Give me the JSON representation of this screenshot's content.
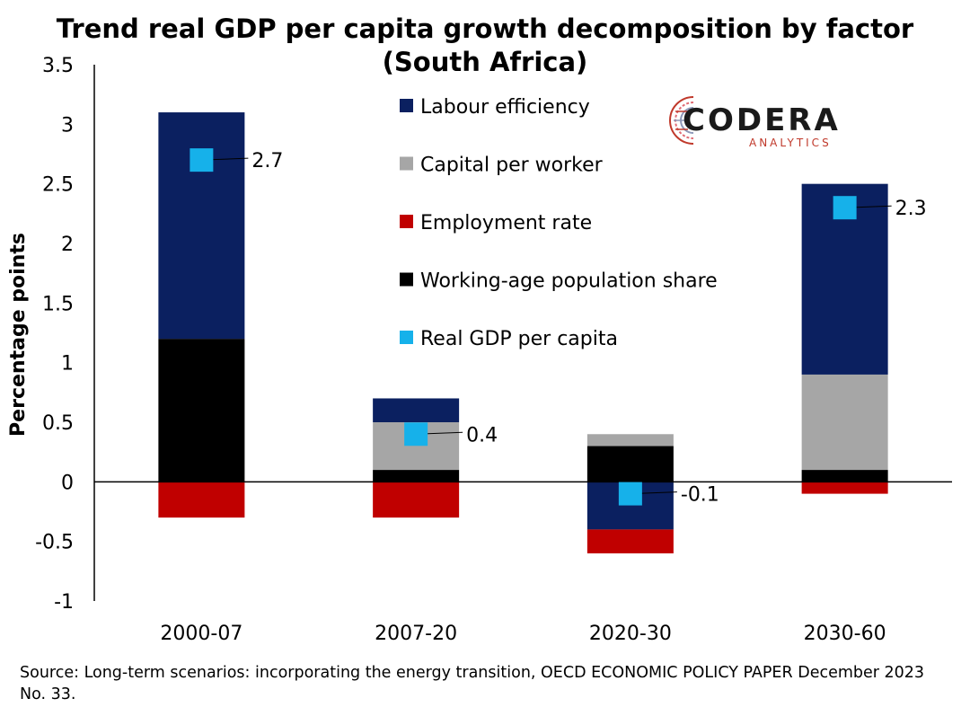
{
  "title_line1": "Trend real GDP per capita growth decomposition by factor",
  "title_line2": "(South Africa)",
  "source_text": "Source: Long-term scenarios: incorporating the energy transition, OECD ECONOMIC POLICY PAPER December 2023 No. 33.",
  "logo": {
    "name": "CODERA",
    "tagline": "ANALYTICS",
    "icon": "codera-circuit-logo"
  },
  "colors": {
    "labour": "#0b2060",
    "capital": "#a6a6a6",
    "employment": "#c00000",
    "working_age": "#000000",
    "gdp": "#16b1ea"
  },
  "chart_data": {
    "type": "bar",
    "stacked": true,
    "title": "Trend real GDP per capita growth decomposition by factor (South Africa)",
    "xlabel": "",
    "ylabel": "Percentage points",
    "ylim": [
      -1,
      3.5
    ],
    "yticks": [
      "3.5",
      "3",
      "2.5",
      "2",
      "1.5",
      "1",
      "0.5",
      "0",
      "-0.5",
      "-1"
    ],
    "grid": false,
    "legend_position": "top-center",
    "categories": [
      "2000-07",
      "2007-20",
      "2020-30",
      "2030-60"
    ],
    "series": [
      {
        "name": "Working-age population share",
        "key": "working_age",
        "values": [
          1.2,
          0.1,
          0.3,
          0.1
        ]
      },
      {
        "name": "Capital per worker",
        "key": "capital",
        "values": [
          0.0,
          0.4,
          0.1,
          0.8
        ]
      },
      {
        "name": "Labour efficiency",
        "key": "labour",
        "values": [
          1.9,
          0.2,
          -0.4,
          1.6
        ]
      },
      {
        "name": "Employment rate",
        "key": "employment",
        "values": [
          -0.3,
          -0.3,
          -0.2,
          -0.1
        ]
      }
    ],
    "legend_order": [
      "Labour efficiency",
      "Capital per worker",
      "Employment rate",
      "Working-age population share",
      "Real GDP per capita"
    ],
    "marker_series": {
      "name": "Real GDP per capita",
      "key": "gdp",
      "values": [
        2.7,
        0.4,
        -0.1,
        2.3
      ],
      "labels": [
        "2.7",
        "0.4",
        "-0.1",
        "2.3"
      ]
    }
  }
}
